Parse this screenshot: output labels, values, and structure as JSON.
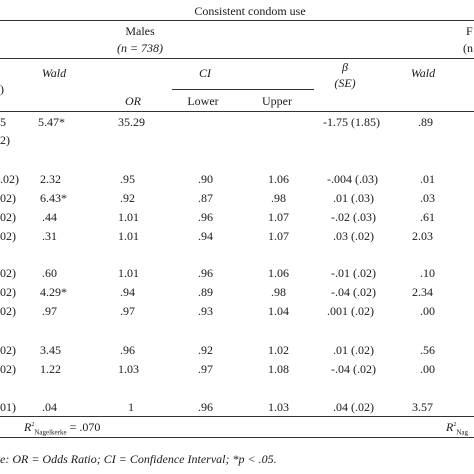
{
  "header": {
    "top_title": "Consistent condom use",
    "males_title": "Males",
    "males_n": "(n = 738)",
    "females_partial": "F",
    "females_n_partial": "(n",
    "wald_left": "Wald",
    "ci": "CI",
    "beta": "β",
    "se": "(SE)",
    "wald_right": "Wald",
    "or": "OR",
    "lower": "Lower",
    "upper": "Upper",
    "left_cut": ")"
  },
  "rows": [
    {
      "c0": "5",
      "wald": "5.47*",
      "or": "35.29",
      "lower": "",
      "upper": "",
      "beta": "-1.75 (1.85)",
      "wald2": ".89"
    },
    {
      "c0": "2)",
      "wald": "",
      "or": "",
      "lower": "",
      "upper": "",
      "beta": "",
      "wald2": ""
    },
    {
      "c0": ".02)",
      "wald": "2.32",
      "or": ".95",
      "lower": ".90",
      "upper": "1.06",
      "beta": "-.004 (.03)",
      "wald2": ".01"
    },
    {
      "c0": "02)",
      "wald": "6.43*",
      "or": ".92",
      "lower": ".87",
      "upper": ".98",
      "beta": ".01 (.03)",
      "wald2": ".03"
    },
    {
      "c0": "02)",
      "wald": ".44",
      "or": "1.01",
      "lower": ".96",
      "upper": "1.07",
      "beta": "-.02 (.03)",
      "wald2": ".61"
    },
    {
      "c0": "02)",
      "wald": ".31",
      "or": "1.01",
      "lower": ".94",
      "upper": "1.07",
      "beta": ".03 (.02)",
      "wald2": "2.03"
    },
    {
      "c0": "02)",
      "wald": ".60",
      "or": "1.01",
      "lower": ".96",
      "upper": "1.06",
      "beta": "-.01 (.02)",
      "wald2": ".10"
    },
    {
      "c0": "02)",
      "wald": "4.29*",
      "or": ".94",
      "lower": ".89",
      "upper": ".98",
      "beta": "-.04 (.02)",
      "wald2": "2.34"
    },
    {
      "c0": "02)",
      "wald": ".97",
      "or": ".97",
      "lower": ".93",
      "upper": "1.04",
      "beta": ".001 (.02)",
      "wald2": ".00"
    },
    {
      "c0": "02)",
      "wald": "3.45",
      "or": ".96",
      "lower": ".92",
      "upper": "1.02",
      "beta": ".01 (.02)",
      "wald2": ".56"
    },
    {
      "c0": "02)",
      "wald": "1.22",
      "or": "1.03",
      "lower": ".97",
      "upper": "1.08",
      "beta": "-.04 (.02)",
      "wald2": ".00"
    },
    {
      "c0": "01)",
      "wald": ".04",
      "or": "1",
      "lower": ".96",
      "upper": "1.03",
      "beta": ".04 (.02)",
      "wald2": "3.57"
    }
  ],
  "footer": {
    "r2_left_main": "R",
    "r2_left_sup": "2",
    "r2_left_sub": "Nagelkerke",
    "r2_left_val": "= .070",
    "r2_right_main": "R",
    "r2_right_sup": "2",
    "r2_right_sub": "Nag",
    "note": "e: OR = Odds Ratio; CI = Confidence Interval; *p < .05."
  }
}
